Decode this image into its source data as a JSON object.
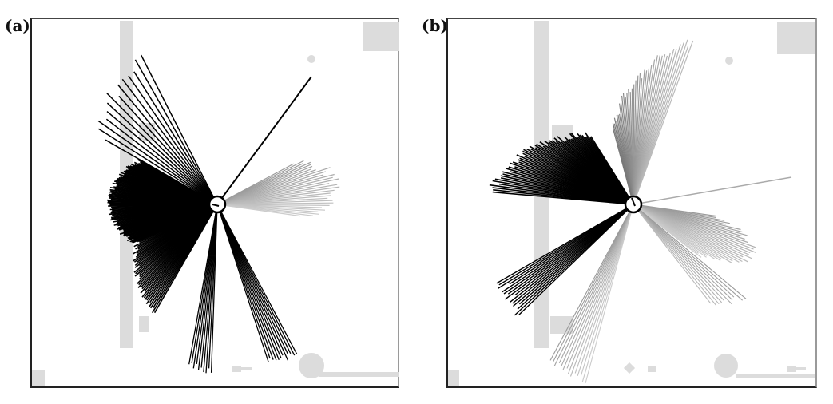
{
  "figure": {
    "panels": [
      {
        "id": "a",
        "label": "(a)"
      },
      {
        "id": "b",
        "label": "(b)"
      }
    ]
  },
  "colors": {
    "background": "#ffffff",
    "obstacle": "#dcdcdc",
    "scan_dark": "#000000",
    "scan_light": "#9a9a9a",
    "sensor_circle": "#000000"
  }
}
